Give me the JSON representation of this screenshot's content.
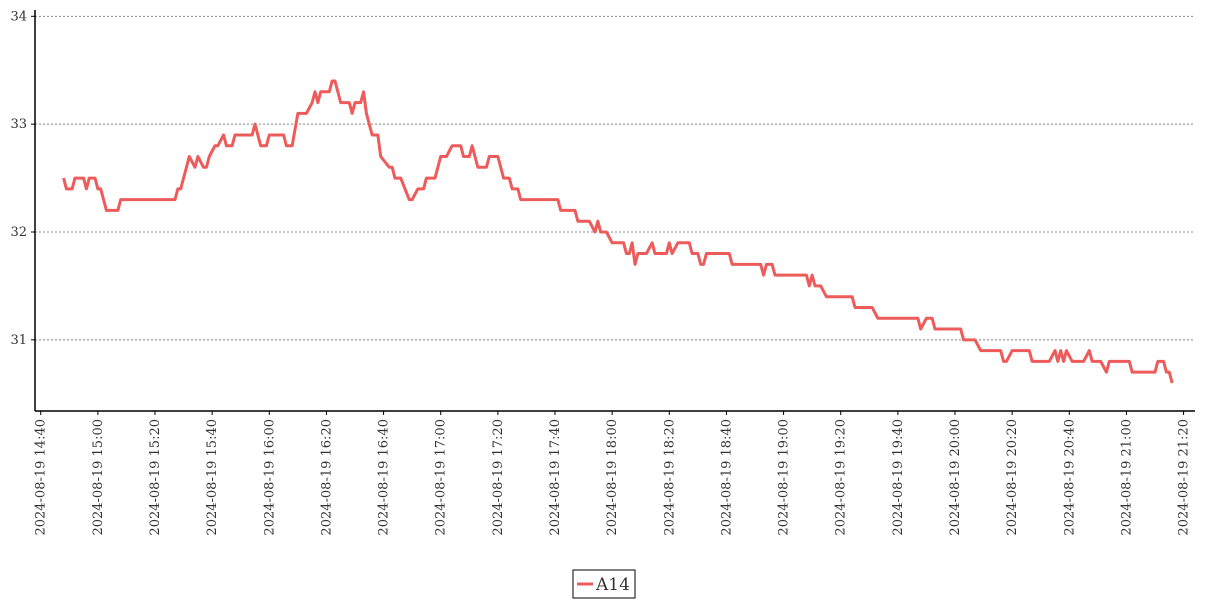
{
  "chart_data": {
    "type": "line",
    "x": [
      "2024-08-19 14:48",
      "2024-08-19 14:49",
      "2024-08-19 14:51",
      "2024-08-19 14:52",
      "2024-08-19 14:55",
      "2024-08-19 14:56",
      "2024-08-19 14:57",
      "2024-08-19 14:59",
      "2024-08-19 15:00",
      "2024-08-19 15:01",
      "2024-08-19 15:02",
      "2024-08-19 15:03",
      "2024-08-19 15:07",
      "2024-08-19 15:08",
      "2024-08-19 15:27",
      "2024-08-19 15:28",
      "2024-08-19 15:29",
      "2024-08-19 15:32",
      "2024-08-19 15:34",
      "2024-08-19 15:35",
      "2024-08-19 15:37",
      "2024-08-19 15:38",
      "2024-08-19 15:39",
      "2024-08-19 15:41",
      "2024-08-19 15:42",
      "2024-08-19 15:44",
      "2024-08-19 15:45",
      "2024-08-19 15:47",
      "2024-08-19 15:48",
      "2024-08-19 15:54",
      "2024-08-19 15:55",
      "2024-08-19 15:57",
      "2024-08-19 15:59",
      "2024-08-19 16:00",
      "2024-08-19 16:05",
      "2024-08-19 16:06",
      "2024-08-19 16:08",
      "2024-08-19 16:10",
      "2024-08-19 16:13",
      "2024-08-19 16:15",
      "2024-08-19 16:16",
      "2024-08-19 16:17",
      "2024-08-19 16:18",
      "2024-08-19 16:21",
      "2024-08-19 16:22",
      "2024-08-19 16:23",
      "2024-08-19 16:25",
      "2024-08-19 16:28",
      "2024-08-19 16:29",
      "2024-08-19 16:30",
      "2024-08-19 16:32",
      "2024-08-19 16:33",
      "2024-08-19 16:34",
      "2024-08-19 16:36",
      "2024-08-19 16:38",
      "2024-08-19 16:39",
      "2024-08-19 16:42",
      "2024-08-19 16:43",
      "2024-08-19 16:44",
      "2024-08-19 16:46",
      "2024-08-19 16:49",
      "2024-08-19 16:50",
      "2024-08-19 16:52",
      "2024-08-19 16:54",
      "2024-08-19 16:55",
      "2024-08-19 16:58",
      "2024-08-19 16:59",
      "2024-08-19 17:00",
      "2024-08-19 17:02",
      "2024-08-19 17:04",
      "2024-08-19 17:07",
      "2024-08-19 17:08",
      "2024-08-19 17:10",
      "2024-08-19 17:11",
      "2024-08-19 17:12",
      "2024-08-19 17:13",
      "2024-08-19 17:16",
      "2024-08-19 17:17",
      "2024-08-19 17:20",
      "2024-08-19 17:22",
      "2024-08-19 17:24",
      "2024-08-19 17:25",
      "2024-08-19 17:27",
      "2024-08-19 17:28",
      "2024-08-19 17:41",
      "2024-08-19 17:42",
      "2024-08-19 17:47",
      "2024-08-19 17:48",
      "2024-08-19 17:52",
      "2024-08-19 17:54",
      "2024-08-19 17:55",
      "2024-08-19 17:56",
      "2024-08-19 17:58",
      "2024-08-19 18:00",
      "2024-08-19 18:04",
      "2024-08-19 18:05",
      "2024-08-19 18:06",
      "2024-08-19 18:07",
      "2024-08-19 18:08",
      "2024-08-19 18:09",
      "2024-08-19 18:12",
      "2024-08-19 18:14",
      "2024-08-19 18:15",
      "2024-08-19 18:19",
      "2024-08-19 18:20",
      "2024-08-19 18:21",
      "2024-08-19 18:23",
      "2024-08-19 18:27",
      "2024-08-19 18:28",
      "2024-08-19 18:30",
      "2024-08-19 18:31",
      "2024-08-19 18:32",
      "2024-08-19 18:33",
      "2024-08-19 18:41",
      "2024-08-19 18:42",
      "2024-08-19 18:52",
      "2024-08-19 18:53",
      "2024-08-19 18:54",
      "2024-08-19 18:56",
      "2024-08-19 18:57",
      "2024-08-19 19:08",
      "2024-08-19 19:09",
      "2024-08-19 19:10",
      "2024-08-19 19:11",
      "2024-08-19 19:13",
      "2024-08-19 19:15",
      "2024-08-19 19:24",
      "2024-08-19 19:25",
      "2024-08-19 19:31",
      "2024-08-19 19:33",
      "2024-08-19 19:47",
      "2024-08-19 19:48",
      "2024-08-19 19:50",
      "2024-08-19 19:52",
      "2024-08-19 19:53",
      "2024-08-19 20:02",
      "2024-08-19 20:03",
      "2024-08-19 20:07",
      "2024-08-19 20:09",
      "2024-08-19 20:16",
      "2024-08-19 20:17",
      "2024-08-19 20:18",
      "2024-08-19 20:20",
      "2024-08-19 20:26",
      "2024-08-19 20:27",
      "2024-08-19 20:33",
      "2024-08-19 20:35",
      "2024-08-19 20:36",
      "2024-08-19 20:37",
      "2024-08-19 20:38",
      "2024-08-19 20:39",
      "2024-08-19 20:41",
      "2024-08-19 20:45",
      "2024-08-19 20:47",
      "2024-08-19 20:48",
      "2024-08-19 20:51",
      "2024-08-19 20:53",
      "2024-08-19 20:54",
      "2024-08-19 21:01",
      "2024-08-19 21:02",
      "2024-08-19 21:10",
      "2024-08-19 21:11",
      "2024-08-19 21:13",
      "2024-08-19 21:14",
      "2024-08-19 21:15",
      "2024-08-19 21:16"
    ],
    "series": [
      {
        "name": "A14",
        "color": "#ee5b5b",
        "values": [
          32.5,
          32.4,
          32.4,
          32.5,
          32.5,
          32.4,
          32.5,
          32.5,
          32.4,
          32.4,
          32.3,
          32.2,
          32.2,
          32.3,
          32.3,
          32.4,
          32.4,
          32.7,
          32.6,
          32.7,
          32.6,
          32.6,
          32.7,
          32.8,
          32.8,
          32.9,
          32.8,
          32.8,
          32.9,
          32.9,
          33.0,
          32.8,
          32.8,
          32.9,
          32.9,
          32.8,
          32.8,
          33.1,
          33.1,
          33.2,
          33.3,
          33.2,
          33.3,
          33.3,
          33.4,
          33.4,
          33.2,
          33.2,
          33.1,
          33.2,
          33.2,
          33.3,
          33.1,
          32.9,
          32.9,
          32.7,
          32.6,
          32.6,
          32.5,
          32.5,
          32.3,
          32.3,
          32.4,
          32.4,
          32.5,
          32.5,
          32.6,
          32.7,
          32.7,
          32.8,
          32.8,
          32.7,
          32.7,
          32.8,
          32.7,
          32.6,
          32.6,
          32.7,
          32.7,
          32.5,
          32.5,
          32.4,
          32.4,
          32.3,
          32.3,
          32.2,
          32.2,
          32.1,
          32.1,
          32.0,
          32.1,
          32.0,
          32.0,
          31.9,
          31.9,
          31.8,
          31.8,
          31.9,
          31.7,
          31.8,
          31.8,
          31.9,
          31.8,
          31.8,
          31.9,
          31.8,
          31.9,
          31.9,
          31.8,
          31.8,
          31.7,
          31.7,
          31.8,
          31.8,
          31.7,
          31.7,
          31.6,
          31.7,
          31.7,
          31.6,
          31.6,
          31.5,
          31.6,
          31.5,
          31.5,
          31.4,
          31.4,
          31.3,
          31.3,
          31.2,
          31.2,
          31.1,
          31.2,
          31.2,
          31.1,
          31.1,
          31.0,
          31.0,
          30.9,
          30.9,
          30.8,
          30.8,
          30.9,
          30.9,
          30.8,
          30.8,
          30.9,
          30.8,
          30.9,
          30.8,
          30.9,
          30.8,
          30.8,
          30.9,
          30.8,
          30.8,
          30.7,
          30.8,
          30.8,
          30.7,
          30.7,
          30.8,
          30.8,
          30.7,
          30.7,
          30.6
        ]
      }
    ],
    "xlim": [
      "2024-08-19 14:38",
      "2024-08-19 21:24"
    ],
    "xticks": [
      "2024-08-19 14:40",
      "2024-08-19 15:00",
      "2024-08-19 15:20",
      "2024-08-19 15:40",
      "2024-08-19 16:00",
      "2024-08-19 16:20",
      "2024-08-19 16:40",
      "2024-08-19 17:00",
      "2024-08-19 17:20",
      "2024-08-19 17:40",
      "2024-08-19 18:00",
      "2024-08-19 18:20",
      "2024-08-19 18:40",
      "2024-08-19 19:00",
      "2024-08-19 19:20",
      "2024-08-19 19:40",
      "2024-08-19 20:00",
      "2024-08-19 20:20",
      "2024-08-19 20:40",
      "2024-08-19 21:00",
      "2024-08-19 21:20"
    ],
    "ylim": [
      30.34,
      34.04
    ],
    "yticks": [
      31,
      32,
      33,
      34
    ],
    "grid": true,
    "legend": "bottom"
  }
}
